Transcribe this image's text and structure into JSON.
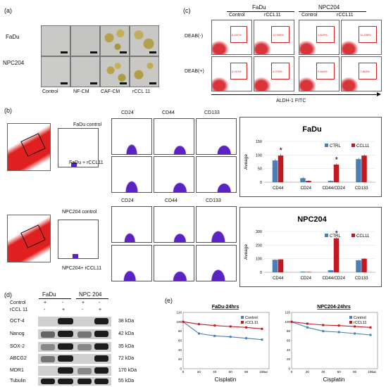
{
  "panel_a": {
    "label": "(a)",
    "rows": [
      "FaDu",
      "NPC204"
    ],
    "cols": [
      "Control",
      "NF-CM",
      "CAF-CM",
      "rCCL 11"
    ]
  },
  "panel_b": {
    "label": "(b)",
    "fadu_rows": [
      "FaDu control",
      "FaDu + rCCL11"
    ],
    "npc_rows": [
      "NPC204 control",
      "NPC204+ rCCL11"
    ],
    "markers": [
      "CD24",
      "CD44",
      "CD133"
    ]
  },
  "panel_c": {
    "label": "(c)",
    "groups": [
      {
        "name": "FaDu",
        "cols": [
          "Control",
          "rCCL11"
        ]
      },
      {
        "name": "NPC204",
        "cols": [
          "Control",
          "rCCL11"
        ]
      }
    ],
    "rows": [
      "DEAB(-)",
      "DEAB(+)"
    ],
    "xaxis": "ALDH-1 FITC",
    "percentages": [
      [
        "0.031%",
        "12.900%",
        "1.820%",
        "11.938%"
      ],
      [
        "0.012%",
        "4.075%",
        "0.464%",
        "7.663%"
      ]
    ]
  },
  "panel_d": {
    "label": "(d)",
    "groups": [
      "FaDu",
      "NPC 204"
    ],
    "treat_rows": [
      {
        "name": "Control",
        "signs": [
          "+",
          "-",
          "+",
          "-"
        ]
      },
      {
        "name": "rCCL 11",
        "signs": [
          "-",
          "+",
          "-",
          "+"
        ]
      }
    ],
    "proteins": [
      {
        "name": "OCT-4",
        "kda": "38 kDa"
      },
      {
        "name": "Nanog",
        "kda": "42 kDa"
      },
      {
        "name": "SOX-2",
        "kda": "35 kDa"
      },
      {
        "name": "ABCG2",
        "kda": "72 kDa"
      },
      {
        "name": "MDR1",
        "kda": "170 kDa"
      },
      {
        "name": "Tubulin",
        "kda": "55 kDa"
      }
    ]
  },
  "panel_e": {
    "label": "(e)"
  },
  "chart_data": [
    {
      "type": "bar",
      "title": "FaDu",
      "ylabel": "Aveage",
      "categories": [
        "CD44",
        "CD24",
        "CD44/CD24",
        "CD133"
      ],
      "ylim": [
        0,
        150
      ],
      "yticks": [
        0,
        50,
        100,
        150
      ],
      "series": [
        {
          "name": "CTRL",
          "values": [
            80,
            15,
            5,
            85
          ]
        },
        {
          "name": "CCL11",
          "values": [
            98,
            5,
            65,
            98
          ]
        }
      ],
      "errors": [
        [
          5,
          4,
          2,
          4
        ],
        [
          6,
          2,
          4,
          4
        ]
      ],
      "significance": [
        "*",
        "",
        "*",
        ""
      ],
      "colors": [
        "#4a7ebb",
        "#c0191f"
      ]
    },
    {
      "type": "bar",
      "title": "NPC204",
      "ylabel": "Aveage",
      "categories": [
        "CD44",
        "CD24",
        "CD44/CD24",
        "CD133"
      ],
      "ylim": [
        0,
        300
      ],
      "yticks": [
        0,
        100,
        200,
        300
      ],
      "series": [
        {
          "name": "CTRL",
          "values": [
            92,
            5,
            15,
            88
          ]
        },
        {
          "name": "CCL11",
          "values": [
            95,
            3,
            250,
            100
          ]
        }
      ],
      "errors": [
        [
          4,
          2,
          3,
          4
        ],
        [
          4,
          2,
          8,
          4
        ]
      ],
      "significance": [
        "",
        "",
        "*",
        ""
      ],
      "colors": [
        "#4a7ebb",
        "#c0191f"
      ]
    },
    {
      "type": "line",
      "title": "FaDu-24hrs",
      "xlabel": "Cisplatin",
      "x": [
        0,
        20,
        40,
        60,
        80,
        100
      ],
      "xunit": "uM",
      "ylim": [
        0,
        120
      ],
      "yticks": [
        0,
        20,
        40,
        60,
        80,
        100,
        120
      ],
      "xticks": [
        0,
        20,
        40,
        60,
        80,
        100
      ],
      "series": [
        {
          "name": "Control",
          "values": [
            100,
            75,
            70,
            68,
            65,
            62
          ]
        },
        {
          "name": "rCCL11",
          "values": [
            100,
            95,
            92,
            90,
            88,
            85
          ]
        }
      ],
      "colors": [
        "#4a7ebb",
        "#c0191f"
      ]
    },
    {
      "type": "line",
      "title": "NPC204-24hrs",
      "xlabel": "Cisplatin",
      "x": [
        0,
        20,
        40,
        60,
        80,
        100
      ],
      "xunit": "uM",
      "ylim": [
        0,
        120
      ],
      "yticks": [
        0,
        20,
        40,
        60,
        80,
        100,
        120
      ],
      "xticks": [
        0,
        20,
        40,
        60,
        80,
        100
      ],
      "series": [
        {
          "name": "Control",
          "values": [
            100,
            88,
            80,
            78,
            75,
            72
          ]
        },
        {
          "name": "rCCL11",
          "values": [
            100,
            96,
            93,
            92,
            90,
            88
          ]
        }
      ],
      "colors": [
        "#4a7ebb",
        "#c0191f"
      ]
    }
  ]
}
